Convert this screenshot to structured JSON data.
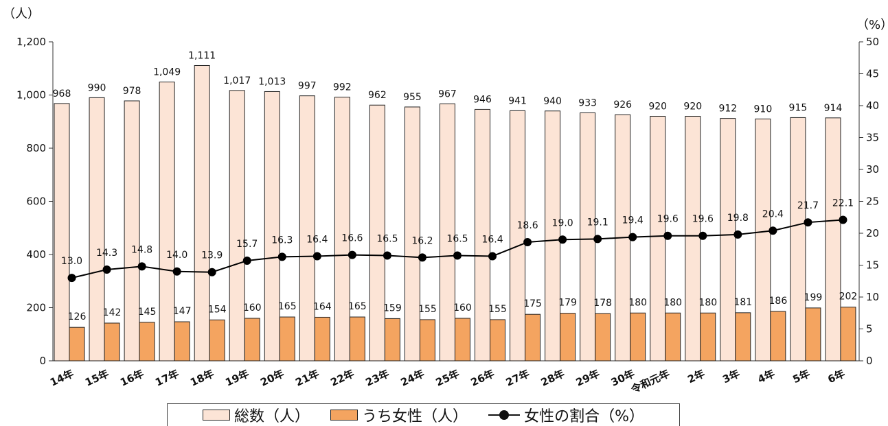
{
  "chart_data": {
    "type": "bar",
    "y_left_unit": "（人）",
    "y_right_unit": "（%）",
    "categories": [
      "14年",
      "15年",
      "16年",
      "17年",
      "18年",
      "19年",
      "20年",
      "21年",
      "22年",
      "23年",
      "24年",
      "25年",
      "26年",
      "27年",
      "28年",
      "29年",
      "30年",
      "令和元年",
      "2年",
      "3年",
      "4年",
      "5年",
      "6年"
    ],
    "y_left": {
      "ticks": [
        "0",
        "200",
        "400",
        "600",
        "800",
        "1,000",
        "1,200"
      ],
      "range": [
        0,
        1200
      ]
    },
    "y_right": {
      "ticks": [
        "0",
        "5",
        "10",
        "15",
        "20",
        "25",
        "30",
        "35",
        "40",
        "45",
        "50"
      ],
      "range": [
        0,
        50
      ]
    },
    "series": [
      {
        "name": "総数（人）",
        "type": "bar",
        "axis": "left",
        "color": "#fce4d6",
        "values": [
          968,
          990,
          978,
          1049,
          1111,
          1017,
          1013,
          997,
          992,
          962,
          955,
          967,
          946,
          941,
          940,
          933,
          926,
          920,
          920,
          912,
          910,
          915,
          914
        ],
        "labels": [
          "968",
          "990",
          "978",
          "1,049",
          "1,111",
          "1,017",
          "1,013",
          "997",
          "992",
          "962",
          "955",
          "967",
          "946",
          "941",
          "940",
          "933",
          "926",
          "920",
          "920",
          "912",
          "910",
          "915",
          "914"
        ]
      },
      {
        "name": "うち女性（人）",
        "type": "bar",
        "axis": "left",
        "color": "#f4a460",
        "values": [
          126,
          142,
          145,
          147,
          154,
          160,
          165,
          164,
          165,
          159,
          155,
          160,
          155,
          175,
          179,
          178,
          180,
          180,
          180,
          181,
          186,
          199,
          202
        ],
        "labels": [
          "126",
          "142",
          "145",
          "147",
          "154",
          "160",
          "165",
          "164",
          "165",
          "159",
          "155",
          "160",
          "155",
          "175",
          "179",
          "178",
          "180",
          "180",
          "180",
          "181",
          "186",
          "199",
          "202"
        ]
      },
      {
        "name": "女性の割合（%）",
        "type": "line",
        "axis": "right",
        "color": "#000000",
        "values": [
          13.0,
          14.3,
          14.8,
          14.0,
          13.9,
          15.7,
          16.3,
          16.4,
          16.6,
          16.5,
          16.2,
          16.5,
          16.4,
          18.6,
          19.0,
          19.1,
          19.4,
          19.6,
          19.6,
          19.8,
          20.4,
          21.7,
          22.1
        ],
        "labels": [
          "13.0",
          "14.3",
          "14.8",
          "14.0",
          "13.9",
          "15.7",
          "16.3",
          "16.4",
          "16.6",
          "16.5",
          "16.2",
          "16.5",
          "16.4",
          "18.6",
          "19.0",
          "19.1",
          "19.4",
          "19.6",
          "19.6",
          "19.8",
          "20.4",
          "21.7",
          "22.1"
        ]
      }
    ]
  }
}
